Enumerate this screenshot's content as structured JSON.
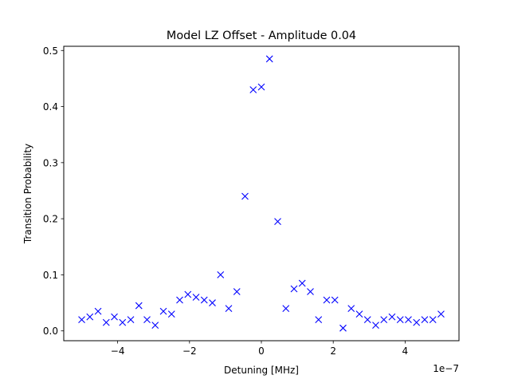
{
  "chart_data": {
    "type": "scatter",
    "title": "Model LZ Offset - Amplitude 0.04",
    "xlabel": "Detuning [MHz]",
    "ylabel": "Transition Probability",
    "x_offset_text": "1e−7",
    "xlim": [
      -5.5,
      5.5
    ],
    "ylim": [
      -0.0175,
      0.5075
    ],
    "x_ticks": [
      -4,
      -2,
      0,
      2,
      4
    ],
    "x_tick_labels": [
      "−4",
      "−2",
      "0",
      "2",
      "4"
    ],
    "y_ticks": [
      0.0,
      0.1,
      0.2,
      0.3,
      0.4,
      0.5
    ],
    "y_tick_labels": [
      "0.0",
      "0.1",
      "0.2",
      "0.3",
      "0.4",
      "0.5"
    ],
    "grid": false,
    "marker": "x",
    "color": "#0000ff",
    "series": [
      {
        "name": "Transition Probability",
        "x": [
          -5.0,
          -4.773,
          -4.545,
          -4.318,
          -4.091,
          -3.864,
          -3.636,
          -3.409,
          -3.182,
          -2.955,
          -2.727,
          -2.5,
          -2.273,
          -2.045,
          -1.818,
          -1.591,
          -1.364,
          -1.136,
          -0.909,
          -0.682,
          -0.455,
          -0.227,
          0.0,
          0.227,
          0.455,
          0.682,
          0.909,
          1.136,
          1.364,
          1.591,
          1.818,
          2.045,
          2.273,
          2.5,
          2.727,
          2.955,
          3.182,
          3.409,
          3.636,
          3.864,
          4.091,
          4.318,
          4.545,
          4.773,
          5.0
        ],
        "y": [
          0.02,
          0.025,
          0.035,
          0.015,
          0.025,
          0.015,
          0.02,
          0.045,
          0.02,
          0.01,
          0.035,
          0.03,
          0.055,
          0.065,
          0.06,
          0.055,
          0.05,
          0.1,
          0.04,
          0.07,
          0.24,
          0.43,
          0.435,
          0.485,
          0.195,
          0.04,
          0.075,
          0.085,
          0.07,
          0.02,
          0.055,
          0.055,
          0.005,
          0.04,
          0.03,
          0.02,
          0.01,
          0.02,
          0.025,
          0.02,
          0.02,
          0.015,
          0.02,
          0.02,
          0.03
        ]
      }
    ]
  }
}
